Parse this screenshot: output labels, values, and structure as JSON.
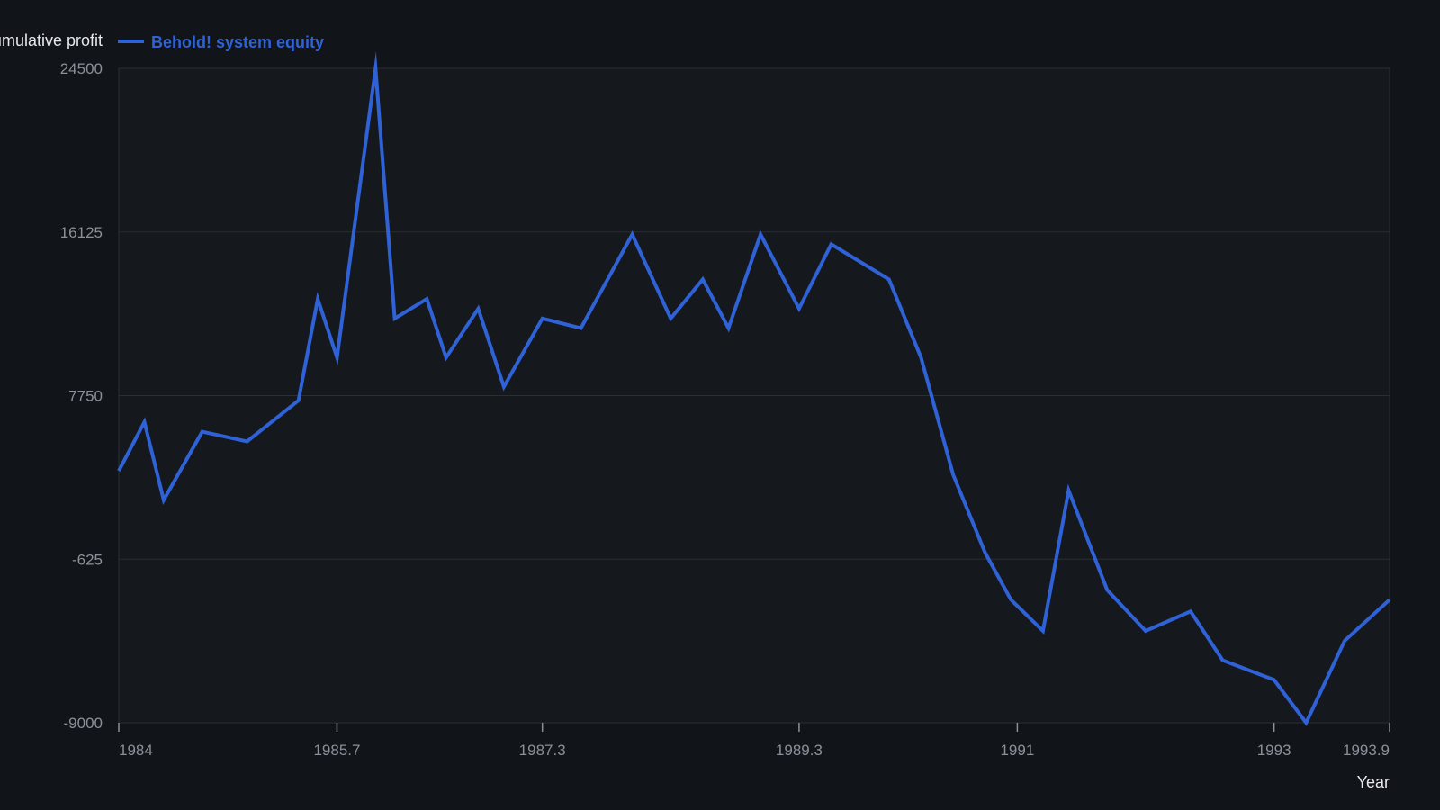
{
  "chart_data": {
    "type": "line",
    "title": "",
    "xlabel": "Year",
    "ylabel": "Cumulative profit",
    "xlim": [
      1984,
      1993.9
    ],
    "ylim": [
      -9000,
      24500
    ],
    "x_ticks": [
      1984,
      1985.7,
      1987.3,
      1989.3,
      1991,
      1993,
      1993.9
    ],
    "x_tick_labels": [
      "1984",
      "1985.7",
      "1987.3",
      "1989.3",
      "1991",
      "1993",
      "1993.9"
    ],
    "y_ticks": [
      24500,
      16125,
      7750,
      -625,
      -9000
    ],
    "y_tick_labels": [
      "24500",
      "16125",
      "7750",
      "-625",
      "-9000"
    ],
    "grid": true,
    "legend_position": "top-left",
    "colors": {
      "background": "#111418",
      "plot_background": "#15181d",
      "grid": "#2a2e35",
      "line": "#2f62d6"
    },
    "series": [
      {
        "name": "Behold! system equity",
        "x": [
          1984,
          1984.2,
          1984.35,
          1984.65,
          1985,
          1985.4,
          1985.55,
          1985.7,
          1986,
          1986.15,
          1986.4,
          1986.55,
          1986.8,
          1987,
          1987.3,
          1987.6,
          1988,
          1988.3,
          1988.55,
          1988.75,
          1989,
          1989.3,
          1989.55,
          1990,
          1990.25,
          1990.5,
          1990.75,
          1990.95,
          1991.2,
          1991.4,
          1991.7,
          1992,
          1992.35,
          1992.6,
          1993,
          1993.25,
          1993.55,
          1993.9
        ],
        "y": [
          3900,
          6400,
          2400,
          5900,
          5400,
          7500,
          12700,
          9700,
          24500,
          11700,
          12700,
          9700,
          12200,
          8200,
          11700,
          11200,
          16000,
          11700,
          13700,
          11200,
          16000,
          12200,
          15500,
          13700,
          9700,
          3700,
          -300,
          -2700,
          -4300,
          2900,
          -2200,
          -4300,
          -3300,
          -5800,
          -6800,
          -9000,
          -4800,
          -2700
        ]
      }
    ]
  }
}
